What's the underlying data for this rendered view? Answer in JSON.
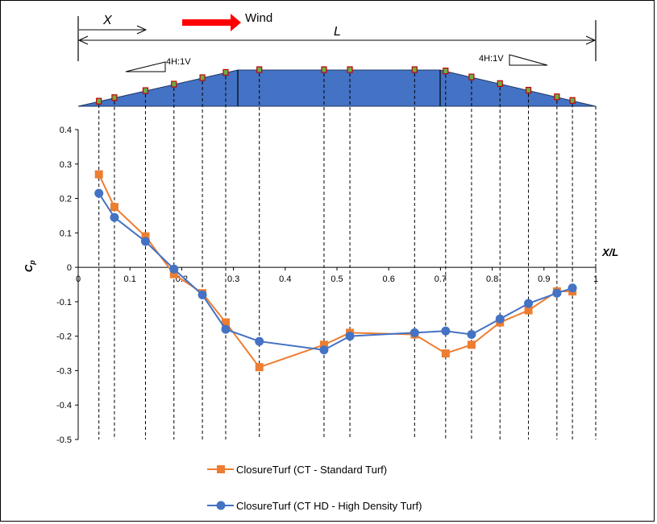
{
  "chart_data": {
    "type": "line",
    "xlabel": "X/L",
    "ylabel_main": "C",
    "ylabel_sub": "p",
    "xlim": [
      0,
      1
    ],
    "ylim": [
      -0.5,
      0.4
    ],
    "x_ticks": [
      "0",
      "0.1",
      "0.2",
      "0.3",
      "0.4",
      "0.5",
      "0.6",
      "0.7",
      "0.8",
      "0.9",
      "1"
    ],
    "y_ticks": [
      "0.4",
      "0.3",
      "0.2",
      "0.1",
      "0",
      "-0.1",
      "-0.2",
      "-0.3",
      "-0.4",
      "-0.5"
    ],
    "grid": false,
    "legend_position": "bottom",
    "series": [
      {
        "name": "ClosureTurf (CT - Standard Turf)",
        "color": "#ED7D31",
        "marker": "square",
        "x": [
          0.04,
          0.07,
          0.13,
          0.185,
          0.24,
          0.285,
          0.35,
          0.475,
          0.525,
          0.65,
          0.71,
          0.76,
          0.815,
          0.87,
          0.925,
          0.955
        ],
        "y": [
          0.27,
          0.175,
          0.09,
          -0.02,
          -0.075,
          -0.16,
          -0.29,
          -0.225,
          -0.19,
          -0.195,
          -0.25,
          -0.225,
          -0.16,
          -0.125,
          -0.07,
          -0.07
        ]
      },
      {
        "name": "ClosureTurf (CT HD - High Density Turf)",
        "color": "#4472C4",
        "marker": "circle",
        "x": [
          0.04,
          0.07,
          0.13,
          0.185,
          0.24,
          0.285,
          0.35,
          0.475,
          0.525,
          0.65,
          0.71,
          0.76,
          0.815,
          0.87,
          0.925,
          0.955
        ],
        "y": [
          0.215,
          0.145,
          0.075,
          -0.005,
          -0.08,
          -0.18,
          -0.215,
          -0.24,
          -0.2,
          -0.19,
          -0.185,
          -0.195,
          -0.15,
          -0.105,
          -0.075,
          -0.06
        ]
      }
    ]
  },
  "diagram": {
    "x_label": "X",
    "l_label": "L",
    "wind_label": "Wind",
    "slope_left_label": "4H:1V",
    "slope_right_label": "4H:1V",
    "arrow_color": "#FF0000",
    "section_fill": "#4472C4"
  }
}
